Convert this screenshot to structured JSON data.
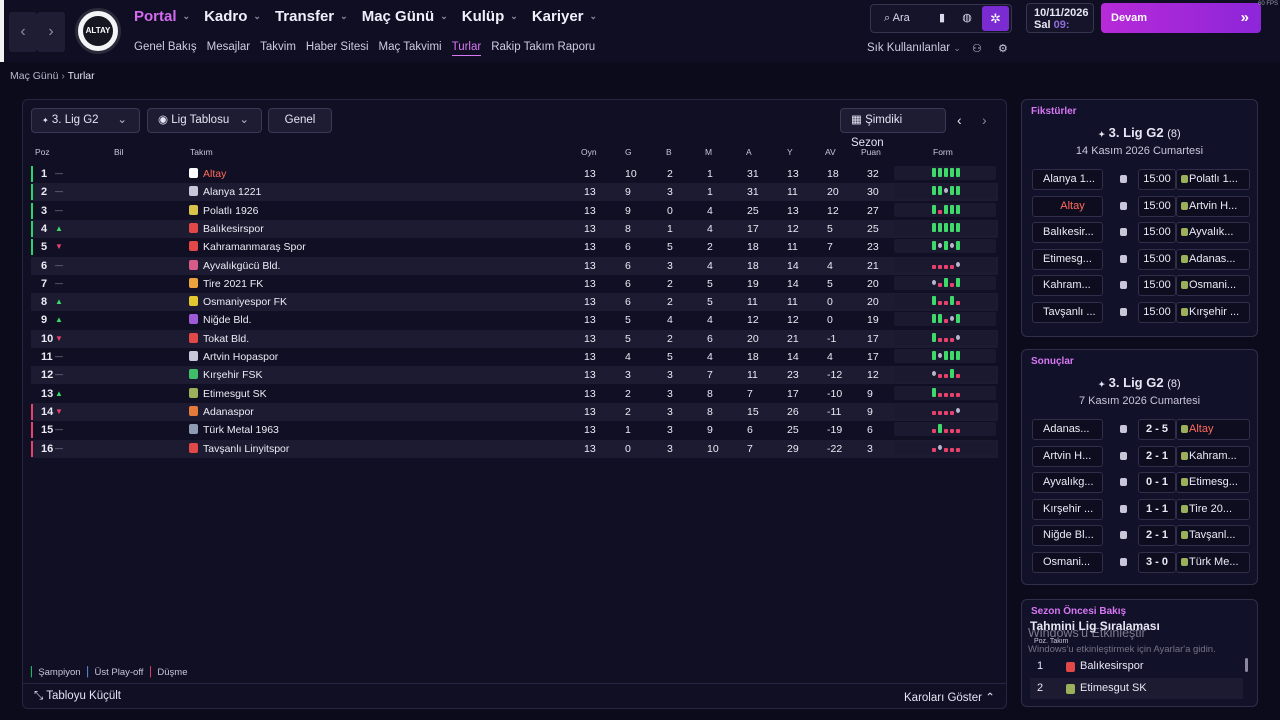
{
  "topnav": {
    "main": [
      {
        "label": "Portal",
        "active": true
      },
      {
        "label": "Kadro"
      },
      {
        "label": "Transfer"
      },
      {
        "label": "Maç Günü"
      },
      {
        "label": "Kulüp"
      },
      {
        "label": "Kariyer"
      }
    ],
    "sub": [
      {
        "label": "Genel Bakış"
      },
      {
        "label": "Mesajlar"
      },
      {
        "label": "Takvim"
      },
      {
        "label": "Haber Sitesi"
      },
      {
        "label": "Maç Takvimi"
      },
      {
        "label": "Turlar",
        "active": true
      },
      {
        "label": "Rakip Takım Raporu"
      }
    ],
    "club_crest_text": "ALTAY",
    "search_label": "Ara",
    "date_line1": "10/11/2026",
    "date_day": "Sal",
    "date_time": "09:",
    "continue_label": "Devam",
    "favorites_label": "Sık Kullanılanlar",
    "fps": "60 FPS"
  },
  "breadcrumb": {
    "parent": "Maç Günü",
    "current": "Turlar"
  },
  "toolbar": {
    "league_label": "3. Lig G2",
    "view_label": "Lig Tablosu",
    "scope_label": "Genel",
    "season_label": "Şimdiki Sezon"
  },
  "table": {
    "headers": {
      "pos": "Poz",
      "info": "Bil",
      "team": "Takım",
      "played": "Oyn",
      "won": "G",
      "drawn": "B",
      "lost": "M",
      "gf": "A",
      "ga": "Y",
      "gd": "AV",
      "pts": "Puan",
      "form": "Form"
    },
    "rows": [
      {
        "pos": "1",
        "move": "—",
        "team": "Altay",
        "highlight": true,
        "icon_color": "#ffffff",
        "zone": "#2bd36b",
        "p": "13",
        "w": "10",
        "d": "2",
        "l": "1",
        "gf": "31",
        "ga": "13",
        "gd": "18",
        "pts": "32",
        "form": "WWWWW"
      },
      {
        "pos": "2",
        "move": "—",
        "team": "Alanya 1221",
        "icon_color": "#c9c6d9",
        "zone": "#2bd36b",
        "p": "13",
        "w": "9",
        "d": "3",
        "l": "1",
        "gf": "31",
        "ga": "11",
        "gd": "20",
        "pts": "30",
        "form": "WWDWW"
      },
      {
        "pos": "3",
        "move": "—",
        "team": "Polatlı 1926",
        "icon_color": "#d8c34b",
        "zone": "#2bd36b",
        "p": "13",
        "w": "9",
        "d": "0",
        "l": "4",
        "gf": "25",
        "ga": "13",
        "gd": "12",
        "pts": "27",
        "form": "WLWWW"
      },
      {
        "pos": "4",
        "move": "▲",
        "team": "Balıkesirspor",
        "icon_color": "#e24848",
        "zone": "#2bd36b",
        "p": "13",
        "w": "8",
        "d": "1",
        "l": "4",
        "gf": "17",
        "ga": "12",
        "gd": "5",
        "pts": "25",
        "form": "WWWWW"
      },
      {
        "pos": "5",
        "move": "▼",
        "team": "Kahramanmaraş Spor",
        "icon_color": "#e24848",
        "zone": "#2bd36b",
        "p": "13",
        "w": "6",
        "d": "5",
        "l": "2",
        "gf": "18",
        "ga": "11",
        "gd": "7",
        "pts": "23",
        "form": "WDWDW"
      },
      {
        "pos": "6",
        "move": "—",
        "team": "Ayvalıkgücü Bld.",
        "icon_color": "#d65a8a",
        "zone": "",
        "p": "13",
        "w": "6",
        "d": "3",
        "l": "4",
        "gf": "18",
        "ga": "14",
        "gd": "4",
        "pts": "21",
        "form": "LLLLD"
      },
      {
        "pos": "7",
        "move": "—",
        "team": "Tire 2021 FK",
        "icon_color": "#e9a23c",
        "zone": "",
        "p": "13",
        "w": "6",
        "d": "2",
        "l": "5",
        "gf": "19",
        "ga": "14",
        "gd": "5",
        "pts": "20",
        "form": "DLWLW"
      },
      {
        "pos": "8",
        "move": "▲",
        "team": "Osmaniyespor FK",
        "icon_color": "#e3c730",
        "zone": "",
        "p": "13",
        "w": "6",
        "d": "2",
        "l": "5",
        "gf": "11",
        "ga": "11",
        "gd": "0",
        "pts": "20",
        "form": "WLLWL"
      },
      {
        "pos": "9",
        "move": "▲",
        "team": "Niğde Bld.",
        "icon_color": "#a05ad8",
        "zone": "",
        "p": "13",
        "w": "5",
        "d": "4",
        "l": "4",
        "gf": "12",
        "ga": "12",
        "gd": "0",
        "pts": "19",
        "form": "WWLDW"
      },
      {
        "pos": "10",
        "move": "▼",
        "team": "Tokat Bld.",
        "icon_color": "#e24848",
        "zone": "",
        "p": "13",
        "w": "5",
        "d": "2",
        "l": "6",
        "gf": "20",
        "ga": "21",
        "gd": "-1",
        "pts": "17",
        "form": "WLLLD"
      },
      {
        "pos": "11",
        "move": "—",
        "team": "Artvin Hopaspor",
        "icon_color": "#c9c6d9",
        "zone": "",
        "p": "13",
        "w": "4",
        "d": "5",
        "l": "4",
        "gf": "18",
        "ga": "14",
        "gd": "4",
        "pts": "17",
        "form": "WDWWW"
      },
      {
        "pos": "12",
        "move": "—",
        "team": "Kırşehir FSK",
        "icon_color": "#3fbf6a",
        "zone": "",
        "p": "13",
        "w": "3",
        "d": "3",
        "l": "7",
        "gf": "11",
        "ga": "23",
        "gd": "-12",
        "pts": "12",
        "form": "DLLWL"
      },
      {
        "pos": "13",
        "move": "▲",
        "team": "Etimesgut SK",
        "icon_color": "#9bb05a",
        "zone": "",
        "p": "13",
        "w": "2",
        "d": "3",
        "l": "8",
        "gf": "7",
        "ga": "17",
        "gd": "-10",
        "pts": "9",
        "form": "WLLLL"
      },
      {
        "pos": "14",
        "move": "▼",
        "team": "Adanaspor",
        "icon_color": "#e57a3a",
        "zone": "#e8416c",
        "p": "13",
        "w": "2",
        "d": "3",
        "l": "8",
        "gf": "15",
        "ga": "26",
        "gd": "-11",
        "pts": "9",
        "form": "LLLLD"
      },
      {
        "pos": "15",
        "move": "—",
        "team": "Türk Metal 1963",
        "icon_color": "#8e9bb5",
        "zone": "#e8416c",
        "p": "13",
        "w": "1",
        "d": "3",
        "l": "9",
        "gf": "6",
        "ga": "25",
        "gd": "-19",
        "pts": "6",
        "form": "LWLLL"
      },
      {
        "pos": "16",
        "move": "—",
        "team": "Tavşanlı Linyitspor",
        "icon_color": "#e24848",
        "zone": "#e8416c",
        "p": "13",
        "w": "0",
        "d": "3",
        "l": "10",
        "gf": "7",
        "ga": "29",
        "gd": "-22",
        "pts": "3",
        "form": "LDLLL"
      }
    ]
  },
  "legend": {
    "champion": "Şampiyon",
    "playoff": "Üst Play-off",
    "relegation": "Düşme"
  },
  "footer": {
    "shrink": "Tabloyu Küçült",
    "show_squads": "Karoları Göster"
  },
  "fixtures": {
    "title": "Fikstürler",
    "league": "3. Lig G2",
    "round": "(8)",
    "date": "14 Kasım 2026 Cumartesi",
    "matches": [
      {
        "home": "Alanya 1...",
        "time": "15:00",
        "away": "Polatlı 1..."
      },
      {
        "home": "Altay",
        "time": "15:00",
        "away": "Artvin H...",
        "home_highlight": true
      },
      {
        "home": "Balıkesir...",
        "time": "15:00",
        "away": "Ayvalık..."
      },
      {
        "home": "Etimesg...",
        "time": "15:00",
        "away": "Adanas..."
      },
      {
        "home": "Kahram...",
        "time": "15:00",
        "away": "Osmani..."
      },
      {
        "home": "Tavşanlı ...",
        "time": "15:00",
        "away": "Kırşehir ..."
      }
    ]
  },
  "results": {
    "title": "Sonuçlar",
    "league": "3. Lig G2",
    "round": "(8)",
    "date": "7 Kasım 2026 Cumartesi",
    "matches": [
      {
        "home": "Adanas...",
        "score": "2 - 5",
        "away": "Altay",
        "away_highlight": true
      },
      {
        "home": "Artvin H...",
        "score": "2 - 1",
        "away": "Kahram..."
      },
      {
        "home": "Ayvalıkg...",
        "score": "0 - 1",
        "away": "Etimesg..."
      },
      {
        "home": "Kırşehir ...",
        "score": "1 - 1",
        "away": "Tire 20..."
      },
      {
        "home": "Niğde Bl...",
        "score": "2 - 1",
        "away": "Tavşanl..."
      },
      {
        "home": "Osmani...",
        "score": "3 - 0",
        "away": "Türk Me..."
      }
    ]
  },
  "preseason": {
    "title": "Sezon Öncesi Bakış",
    "subtitle": "Tahmini Lig Sıralaması",
    "col_pos": "Poz.",
    "col_team": "Takım",
    "rows": [
      {
        "pos": "1",
        "team": "Balıkesirspor"
      },
      {
        "pos": "2",
        "team": "Etimesgut SK"
      }
    ]
  },
  "watermark": {
    "line1": "Windows'u Etkinleştir",
    "line2": "Windows'u etkinleştirmek için Ayarlar'a gidin."
  },
  "colors": {
    "accent": "#d46bf0",
    "win": "#3fd96a",
    "loss": "#e8416c",
    "draw": "#b9b6cc",
    "champion": "#2bd36b",
    "relegation": "#e8416c"
  }
}
